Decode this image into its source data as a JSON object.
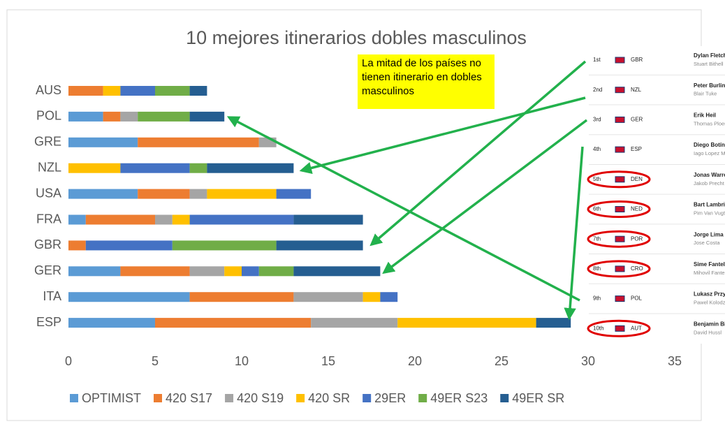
{
  "chart_data": {
    "type": "stacked-barh",
    "title": "10 mejores itinerarios dobles masculinos",
    "annotation": "La mitad de los países no tienen itinerario en dobles masculinos",
    "categories": [
      "AUS",
      "POL",
      "GRE",
      "NZL",
      "USA",
      "FRA",
      "GBR",
      "GER",
      "ITA",
      "ESP"
    ],
    "series": [
      {
        "name": "OPTIMIST",
        "color": "#5b9bd5",
        "values": [
          0,
          2,
          4,
          0,
          4,
          1,
          0,
          3,
          7,
          5
        ]
      },
      {
        "name": "420 S17",
        "color": "#ed7d31",
        "values": [
          2,
          1,
          7,
          0,
          3,
          4,
          1,
          4,
          6,
          9
        ]
      },
      {
        "name": "420 S19",
        "color": "#a5a5a5",
        "values": [
          0,
          1,
          1,
          0,
          1,
          1,
          0,
          2,
          4,
          5
        ]
      },
      {
        "name": "420 SR",
        "color": "#ffc000",
        "values": [
          1,
          0,
          0,
          3,
          4,
          1,
          0,
          1,
          1,
          8
        ]
      },
      {
        "name": "29ER",
        "color": "#4472c4",
        "values": [
          2,
          0,
          0,
          4,
          2,
          6,
          5,
          1,
          1,
          0
        ]
      },
      {
        "name": "49ER S23",
        "color": "#70ad47",
        "values": [
          2,
          3,
          0,
          1,
          0,
          0,
          6,
          2,
          0,
          0
        ]
      },
      {
        "name": "49ER SR",
        "color": "#255e91",
        "values": [
          1,
          2,
          0,
          5,
          0,
          4,
          5,
          5,
          0,
          2
        ]
      }
    ],
    "xlim": [
      0,
      35
    ],
    "xticks": [
      0,
      5,
      10,
      15,
      20,
      25,
      30,
      35
    ],
    "grid": false,
    "legend": "bottom"
  },
  "ranking": [
    {
      "rank": "1st",
      "country": "GBR",
      "helm": "Dylan Fletcher",
      "crew": "Stuart Bithell"
    },
    {
      "rank": "2nd",
      "country": "NZL",
      "helm": "Peter Burling",
      "crew": "Blair Tuke"
    },
    {
      "rank": "3rd",
      "country": "GER",
      "helm": "Erik Heil",
      "crew": "Thomas Ploessel"
    },
    {
      "rank": "4th",
      "country": "ESP",
      "helm": "Diego Botín Le Chev",
      "crew": "Iago Lopez Marra"
    },
    {
      "rank": "5th",
      "country": "DEN",
      "helm": "Jonas Warrer",
      "crew": "Jakob Precht Jensen"
    },
    {
      "rank": "6th",
      "country": "NED",
      "helm": "Bart Lambriex",
      "crew": "Pim Van Vugt"
    },
    {
      "rank": "7th",
      "country": "POR",
      "helm": "Jorge Lima",
      "crew": "Jose Costa"
    },
    {
      "rank": "8th",
      "country": "CRO",
      "helm": "Sime Fantela",
      "crew": "Mihovil Fantela"
    },
    {
      "rank": "9th",
      "country": "POL",
      "helm": "Lukasz Przybytek",
      "crew": "Pawel Kolodzinski"
    },
    {
      "rank": "10th",
      "country": "AUT",
      "helm": "Benjamin Bildstein",
      "crew": "David Hussl"
    }
  ]
}
